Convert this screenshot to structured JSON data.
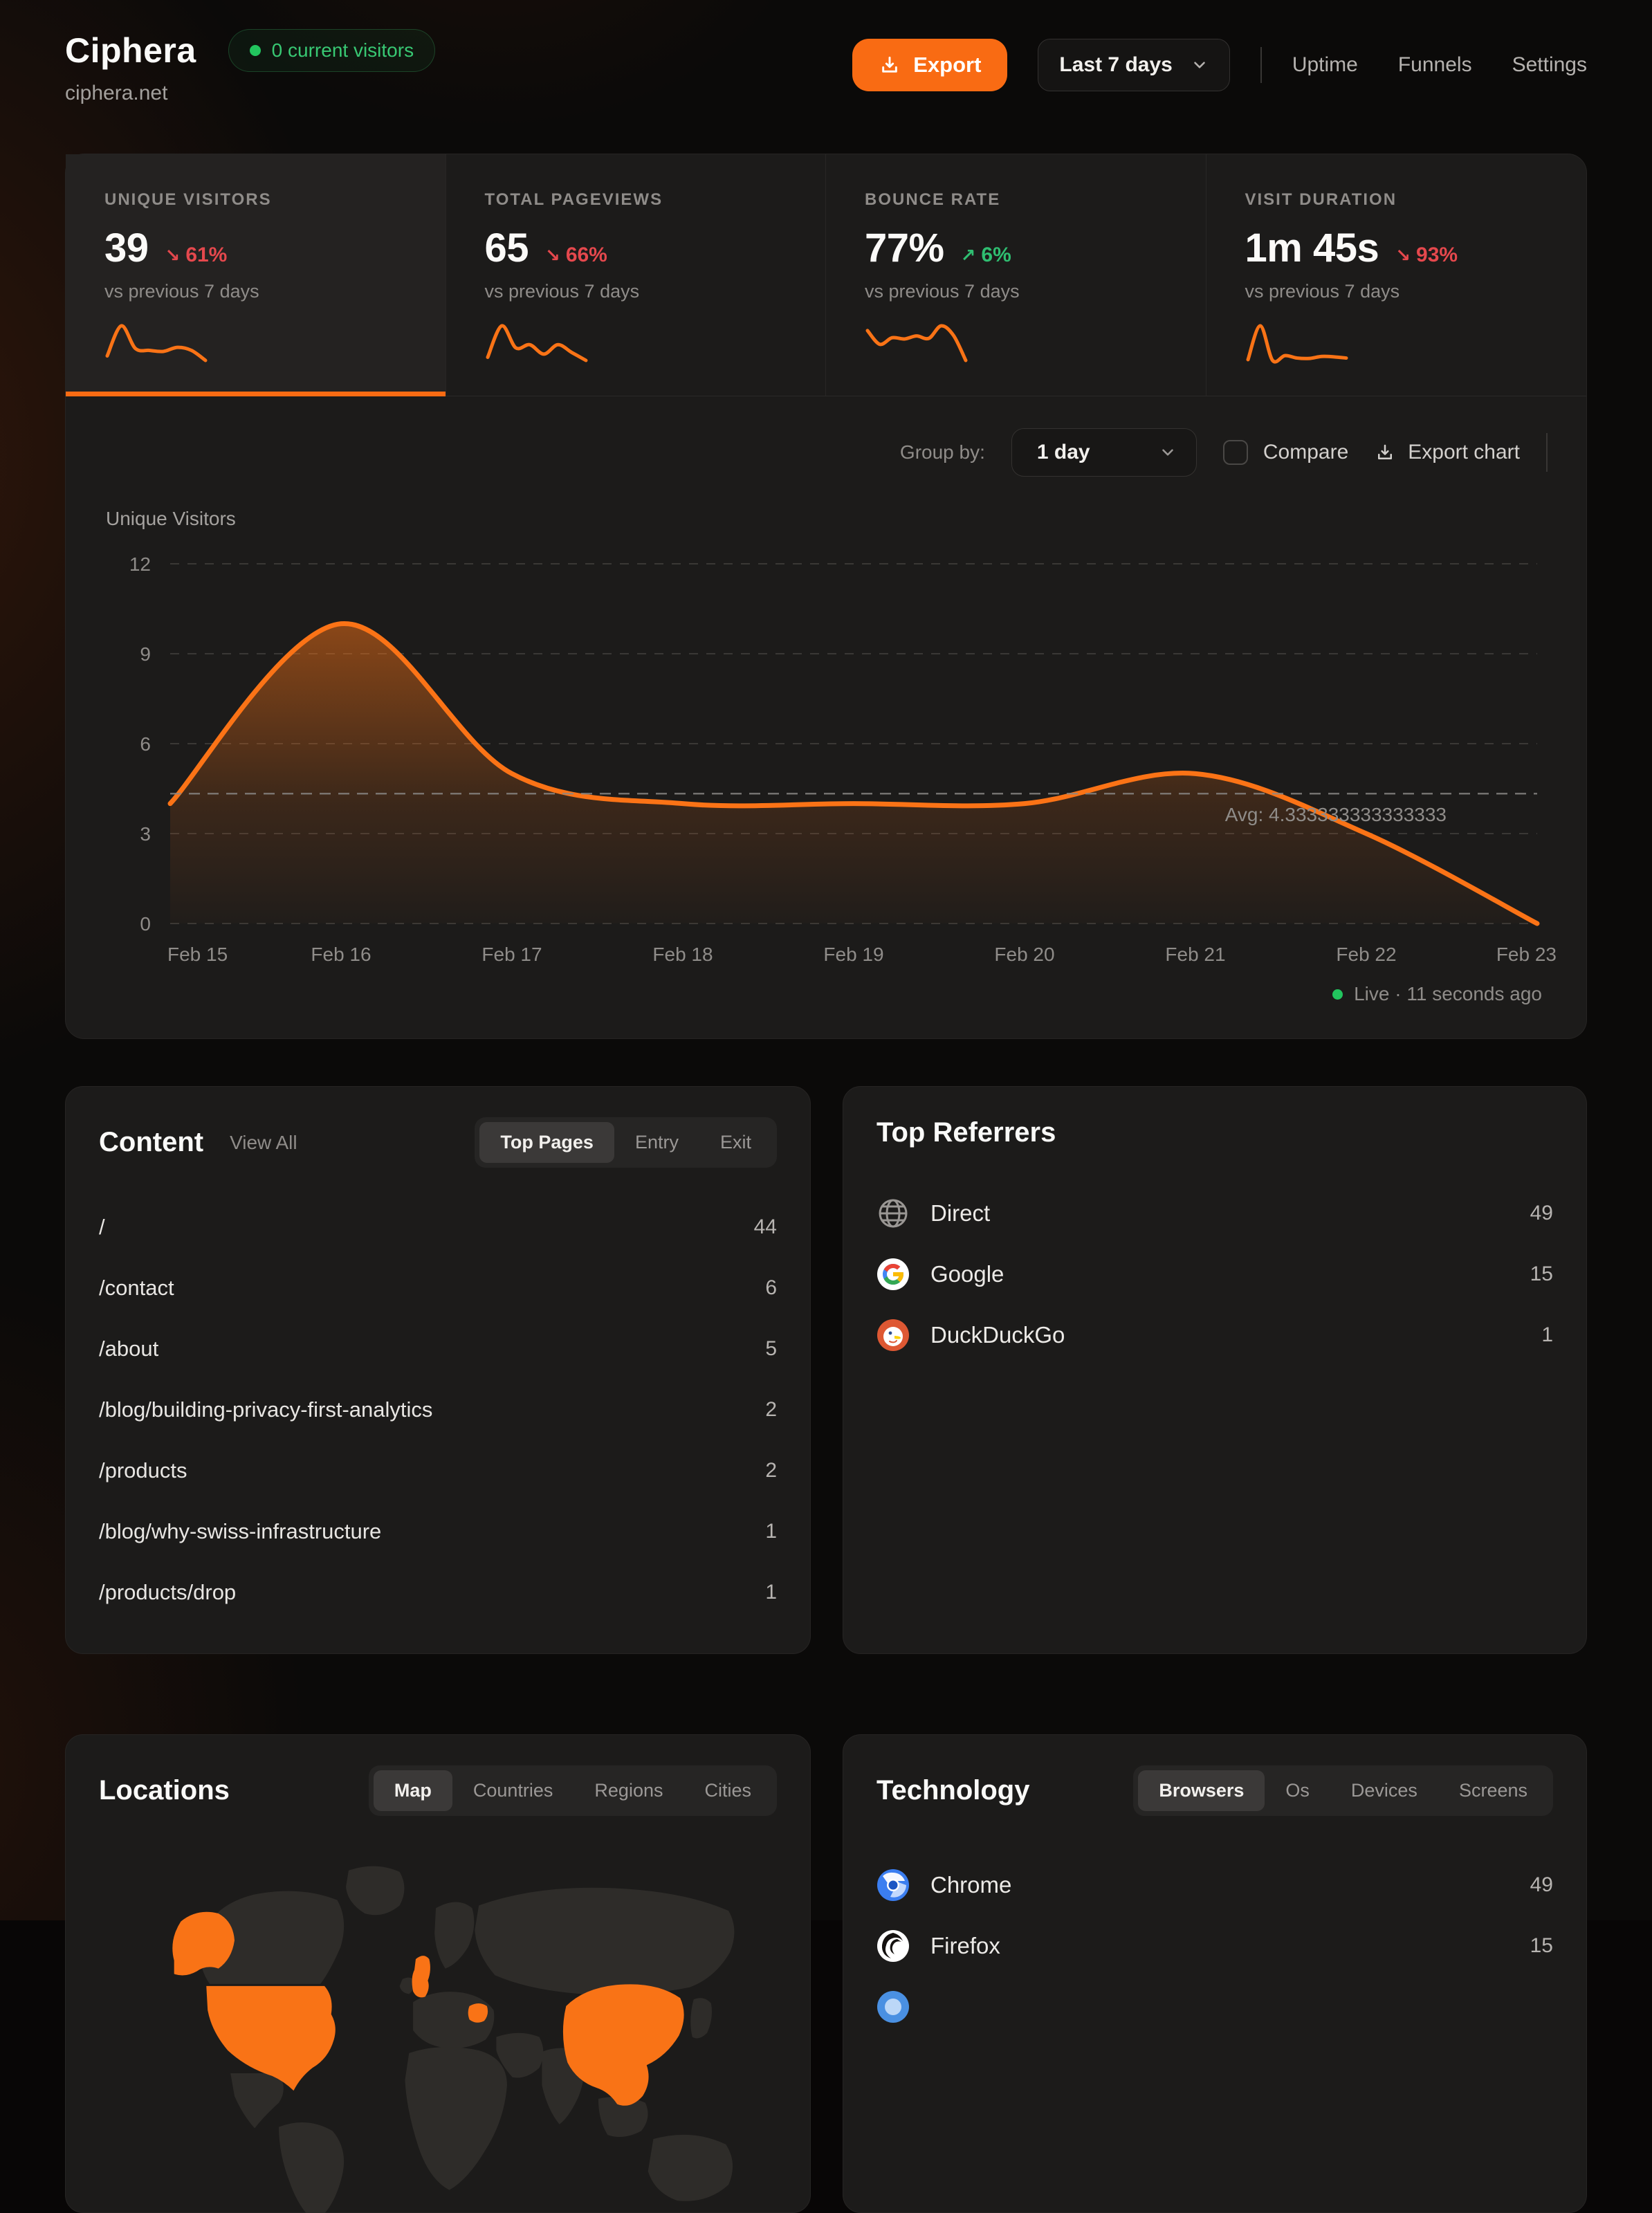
{
  "header": {
    "title": "Ciphera",
    "domain": "ciphera.net",
    "live_badge": "0 current visitors",
    "export_label": "Export",
    "date_range": "Last 7 days",
    "nav": [
      {
        "label": "Uptime"
      },
      {
        "label": "Funnels"
      },
      {
        "label": "Settings"
      }
    ]
  },
  "stats": [
    {
      "label": "UNIQUE VISITORS",
      "value": "39",
      "arrow": "↘",
      "change": "61%",
      "trend": "down",
      "compare": "vs previous 7 days",
      "spark": [
        3.5,
        9.5,
        5,
        4.6,
        4.4,
        5.2,
        4.6,
        2.6
      ]
    },
    {
      "label": "TOTAL PAGEVIEWS",
      "value": "65",
      "arrow": "↘",
      "change": "66%",
      "trend": "down",
      "compare": "vs previous 7 days",
      "spark": [
        5,
        15,
        8,
        9,
        6,
        9,
        6.5,
        4
      ]
    },
    {
      "label": "BOUNCE RATE",
      "value": "77%",
      "arrow": "↗",
      "change": "6%",
      "trend": "up",
      "compare": "vs previous 7 days",
      "spark": [
        78,
        55,
        66,
        64,
        69,
        65,
        86,
        70,
        28
      ]
    },
    {
      "label": "VISIT DURATION",
      "value": "1m 45s",
      "arrow": "↘",
      "change": "93%",
      "trend": "down",
      "compare": "vs previous 7 days",
      "spark": [
        20,
        105,
        18,
        30,
        24,
        23,
        28,
        27,
        24
      ]
    }
  ],
  "chart_controls": {
    "group_by_label": "Group by:",
    "group_by_value": "1 day",
    "compare_label": "Compare",
    "export_label": "Export chart"
  },
  "chart_data": {
    "type": "area",
    "series_name": "Unique Visitors",
    "x": [
      "Feb 15",
      "Feb 16",
      "Feb 17",
      "Feb 18",
      "Feb 19",
      "Feb 20",
      "Feb 21",
      "Feb 22",
      "Feb 23"
    ],
    "values": [
      4,
      10,
      5,
      4,
      4,
      4,
      5,
      3,
      0
    ],
    "avg": 4.333333333333333,
    "avg_label": "Avg: 4.333333333333333",
    "ylabel": "Unique Visitors",
    "yticks": [
      0,
      3,
      6,
      9,
      12
    ],
    "ylim": [
      0,
      12
    ],
    "grid": "dashed-horizontal",
    "legend": "none",
    "line_color": "#fb7316"
  },
  "live_status": "Live · 11 seconds ago",
  "content": {
    "title": "Content",
    "view_all": "View All",
    "tabs": [
      "Top Pages",
      "Entry",
      "Exit"
    ],
    "active_tab": "Top Pages",
    "rows": [
      {
        "page": "/",
        "count": "44"
      },
      {
        "page": "/contact",
        "count": "6"
      },
      {
        "page": "/about",
        "count": "5"
      },
      {
        "page": "/blog/building-privacy-first-analytics",
        "count": "2"
      },
      {
        "page": "/products",
        "count": "2"
      },
      {
        "page": "/blog/why-swiss-infrastructure",
        "count": "1"
      },
      {
        "page": "/products/drop",
        "count": "1"
      }
    ]
  },
  "referrers": {
    "title": "Top Referrers",
    "rows": [
      {
        "name": "Direct",
        "count": "49",
        "icon": "globe-icon"
      },
      {
        "name": "Google",
        "count": "15",
        "icon": "google-icon"
      },
      {
        "name": "DuckDuckGo",
        "count": "1",
        "icon": "duckduckgo-icon"
      }
    ]
  },
  "locations": {
    "title": "Locations",
    "tabs": [
      "Map",
      "Countries",
      "Regions",
      "Cities"
    ],
    "active_tab": "Map",
    "highlighted_countries": [
      "United States",
      "Alaska",
      "United Kingdom",
      "Romania",
      "China"
    ]
  },
  "technology": {
    "title": "Technology",
    "tabs": [
      "Browsers",
      "Os",
      "Devices",
      "Screens"
    ],
    "active_tab": "Browsers",
    "rows": [
      {
        "name": "Chrome",
        "count": "49",
        "icon": "chrome-icon"
      },
      {
        "name": "Firefox",
        "count": "15",
        "icon": "firefox-icon"
      }
    ]
  },
  "colors": {
    "accent": "#f96b13",
    "chart_line": "#fb7316",
    "positive": "#2fbe71",
    "negative": "#e5484d",
    "live_green": "#22c55e",
    "panel_bg": "#1c1b1a",
    "page_bg": "#0b0a09"
  }
}
